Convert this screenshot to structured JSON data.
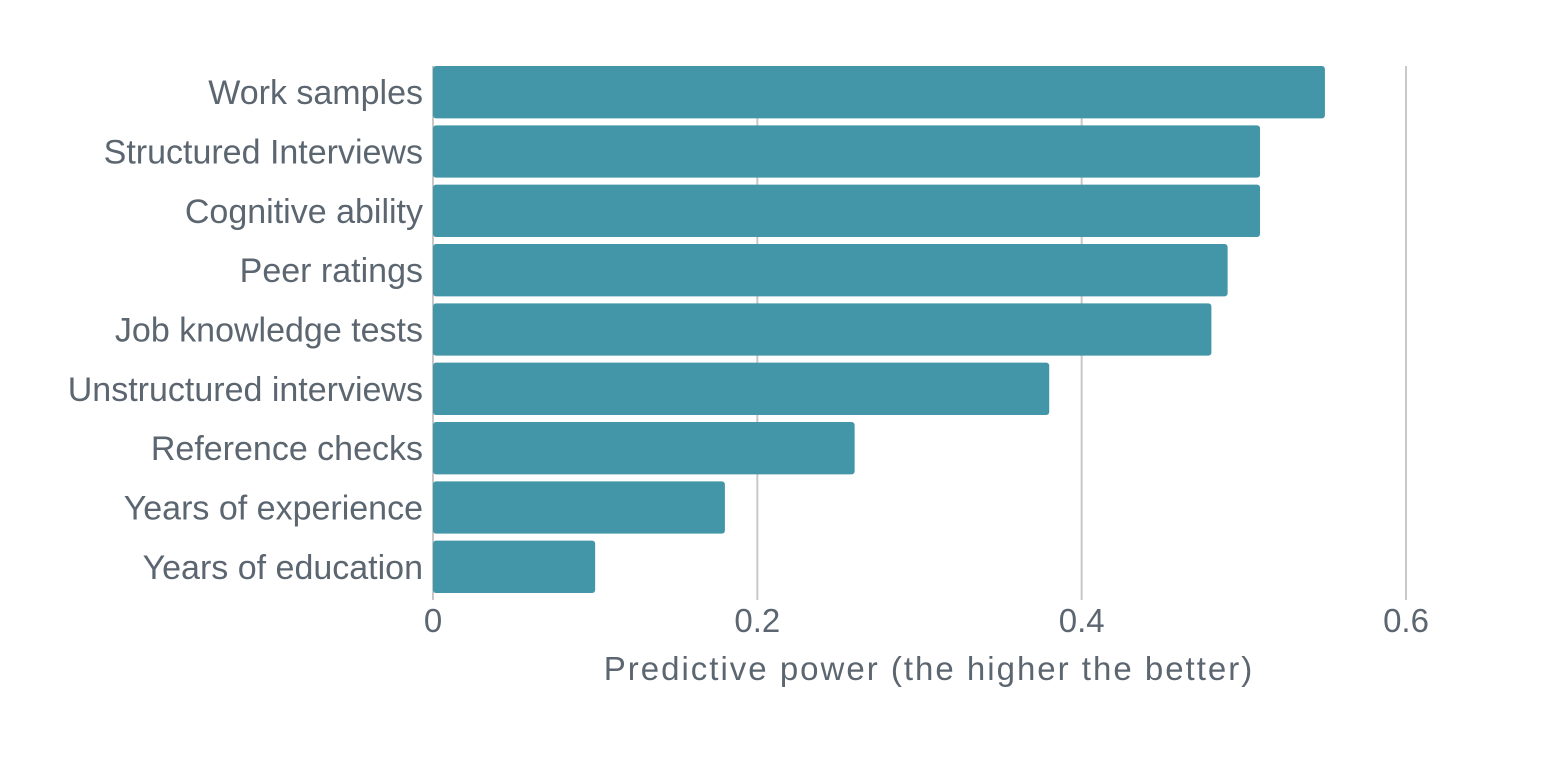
{
  "chart_data": {
    "type": "bar",
    "orientation": "horizontal",
    "title": "",
    "xlabel": "Predictive power (the higher the better)",
    "ylabel": "",
    "categories": [
      "Work samples",
      "Structured Interviews",
      "Cognitive ability",
      "Peer ratings",
      "Job knowledge tests",
      "Unstructured interviews",
      "Reference checks",
      "Years of experience",
      "Years of education"
    ],
    "values": [
      0.55,
      0.51,
      0.51,
      0.49,
      0.48,
      0.38,
      0.26,
      0.18,
      0.1
    ],
    "xlim": [
      0,
      0.7
    ],
    "xticks": [
      0,
      0.2,
      0.4,
      0.6
    ],
    "xtick_labels": [
      "0",
      "0.2",
      "0.4",
      "0.6"
    ],
    "grid": "vertical",
    "legend": "none"
  },
  "colors": {
    "bar": "#4396a8",
    "grid": "#c8c8c8",
    "label_text": "#5c6670",
    "axis_line": "#c8c8c8"
  }
}
